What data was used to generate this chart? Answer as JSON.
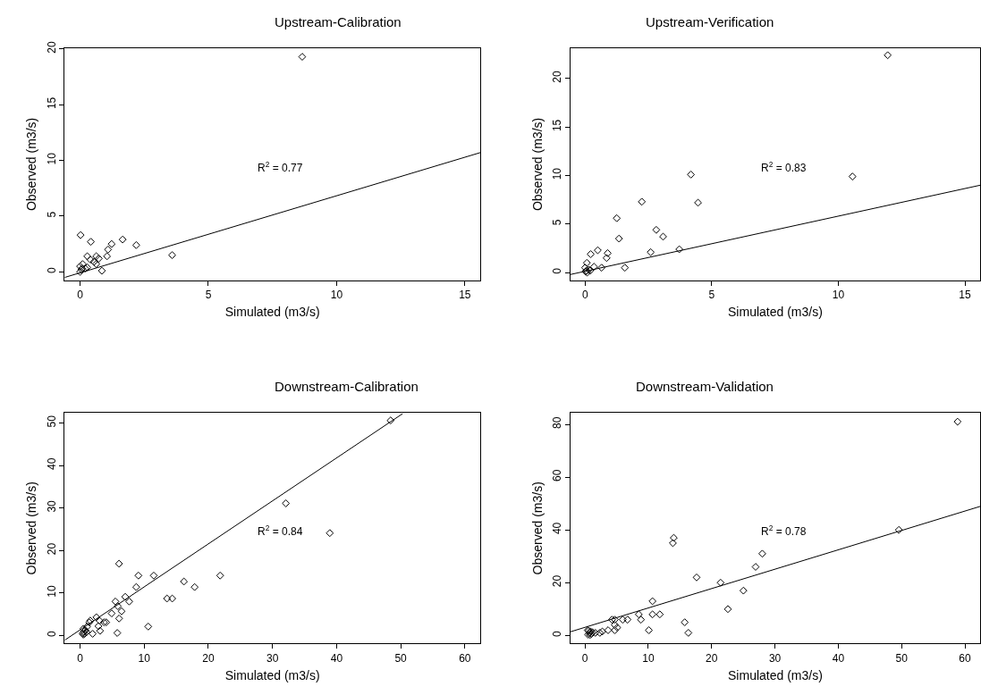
{
  "chart_data": [
    {
      "type": "scatter",
      "title": "Upstream-Calibration",
      "xlabel": "Simulated (m3/s)",
      "ylabel": "Observed (m3/s)",
      "xlim": [
        -0.6,
        15.6
      ],
      "ylim": [
        -0.75,
        20.05
      ],
      "xticks": [
        0,
        5,
        10,
        15
      ],
      "yticks": [
        0,
        5,
        10,
        15,
        20
      ],
      "annotations": [
        "R$^{2}$ = 0.77"
      ],
      "series": [
        {
          "color": "#000000",
          "marker": "diamond",
          "x": [
            8.66,
            0.02,
            0.42,
            1.23,
            1.66,
            2.19,
            1.09,
            1.05,
            3.59,
            0.85,
            0.28,
            0.4,
            0.63,
            0.73,
            0.54,
            0.63,
            0.1,
            0.0,
            0.28,
            0.05,
            0.08,
            0.2,
            0.0
          ],
          "values": [
            19.3,
            3.3,
            2.7,
            2.5,
            2.9,
            2.4,
            2.0,
            1.4,
            1.5,
            0.1,
            1.4,
            1.1,
            1.4,
            1.2,
            0.9,
            0.7,
            0.7,
            0.5,
            0.4,
            0.2,
            0.3,
            0.3,
            0.0
          ]
        },
        {
          "type": "line",
          "marker": "none",
          "color": "#000000",
          "x": [
            -0.6,
            15.6
          ],
          "values": [
            -0.5,
            10.7
          ]
        }
      ]
    },
    {
      "type": "scatter",
      "title": "Upstream-Verification",
      "xlabel": "Simulated (m3/s)",
      "ylabel": "Observed (m3/s)",
      "xlim": [
        -0.58,
        15.6
      ],
      "ylim": [
        -0.79,
        23.1
      ],
      "xticks": [
        0,
        5,
        10,
        15
      ],
      "yticks": [
        0,
        5,
        10,
        15,
        20
      ],
      "annotations": [
        "R$^{2}$ = 0.83"
      ],
      "series": [
        {
          "color": "#000000",
          "marker": "diamond",
          "x": [
            11.95,
            4.18,
            10.56,
            2.24,
            4.46,
            1.25,
            1.34,
            2.81,
            3.08,
            3.72,
            2.59,
            0.5,
            0.22,
            0.89,
            0.85,
            0.07,
            1.57,
            0.65,
            0.35,
            0.0,
            0.02,
            0.05,
            0.15,
            0.2,
            0.08
          ],
          "values": [
            22.4,
            10.1,
            9.9,
            7.3,
            7.2,
            5.6,
            3.5,
            4.4,
            3.7,
            2.4,
            2.1,
            2.3,
            1.9,
            2.0,
            1.5,
            1.0,
            0.5,
            0.5,
            0.6,
            0.5,
            0.1,
            0.2,
            0.3,
            0.2,
            0.0
          ]
        },
        {
          "type": "line",
          "marker": "none",
          "color": "#000000",
          "x": [
            -0.58,
            15.6
          ],
          "values": [
            -0.2,
            9.0
          ]
        }
      ]
    },
    {
      "type": "scatter",
      "title": "Downstream-Calibration",
      "xlabel": "Simulated (m3/s)",
      "ylabel": "Observed (m3/s)",
      "xlim": [
        -2.4,
        62.4
      ],
      "ylim": [
        -1.86,
        52.36
      ],
      "xticks": [
        0,
        10,
        20,
        30,
        40,
        50,
        60
      ],
      "yticks": [
        0,
        10,
        20,
        30,
        40,
        50
      ],
      "annotations": [
        "R$^{2}$ = 0.84"
      ],
      "series": [
        {
          "color": "#000000",
          "marker": "diamond",
          "x": [
            48.42,
            32.09,
            38.94,
            6.08,
            9.1,
            11.49,
            21.84,
            16.19,
            17.86,
            8.76,
            13.55,
            14.37,
            7.04,
            7.66,
            5.51,
            5.89,
            6.47,
            6.08,
            4.93,
            10.63,
            5.8,
            1.96,
            2.54,
            1.58,
            1.44,
            3.02,
            3.74,
            4.07,
            2.87,
            3.11,
            1.1,
            0.53,
            0.4,
            0.6,
            0.5,
            0.8,
            0.7,
            1.0
          ],
          "values": [
            50.6,
            31.1,
            24.1,
            16.9,
            14.1,
            14.1,
            14.1,
            12.7,
            11.4,
            11.4,
            8.7,
            8.7,
            9.1,
            8.0,
            8.0,
            6.9,
            5.7,
            4.0,
            5.2,
            2.1,
            0.6,
            0.4,
            4.3,
            3.5,
            3.1,
            3.5,
            3.1,
            3.1,
            2.2,
            1.1,
            2.1,
            1.6,
            0.5,
            0.9,
            0.2,
            1.2,
            0.4,
            0.8
          ]
        },
        {
          "type": "line",
          "marker": "none",
          "color": "#000000",
          "x": [
            -2.4,
            50.3
          ],
          "values": [
            -1.1,
            52.2
          ]
        }
      ]
    },
    {
      "type": "scatter",
      "title": "Downstream-Validation",
      "xlabel": "Simulated (m3/s)",
      "ylabel": "Observed (m3/s)",
      "xlim": [
        -2.3,
        62.4
      ],
      "ylim": [
        -3.0,
        84.3
      ],
      "xticks": [
        0,
        10,
        20,
        30,
        40,
        50,
        60
      ],
      "yticks": [
        0,
        20,
        40,
        60,
        80
      ],
      "annotations": [
        "R$^{2}$ = 0.78"
      ],
      "series": [
        {
          "color": "#000000",
          "marker": "diamond",
          "x": [
            58.84,
            49.57,
            14.02,
            13.88,
            28.0,
            26.95,
            17.63,
            21.42,
            25.02,
            22.57,
            10.66,
            10.66,
            11.82,
            8.5,
            8.84,
            15.75,
            16.33,
            10.09,
            5.96,
            6.72,
            4.27,
            4.71,
            4.71,
            5.09,
            4.71,
            3.65,
            2.74,
            2.35,
            1.63,
            0.43,
            0.5,
            0.7,
            0.9,
            1.0,
            1.2,
            0.6,
            0.8
          ],
          "values": [
            81,
            40,
            37,
            35,
            31,
            26,
            22,
            20,
            17,
            10,
            13,
            8,
            8,
            8,
            6,
            5,
            1,
            2,
            6,
            6,
            6,
            6,
            4,
            3,
            2,
            2,
            1.5,
            1,
            1,
            2,
            0.3,
            1,
            1.5,
            0.6,
            1.2,
            1.8,
            0.2
          ]
        },
        {
          "type": "line",
          "marker": "none",
          "color": "#000000",
          "x": [
            -2.3,
            62.4
          ],
          "values": [
            1.4,
            48.9
          ]
        }
      ]
    }
  ]
}
